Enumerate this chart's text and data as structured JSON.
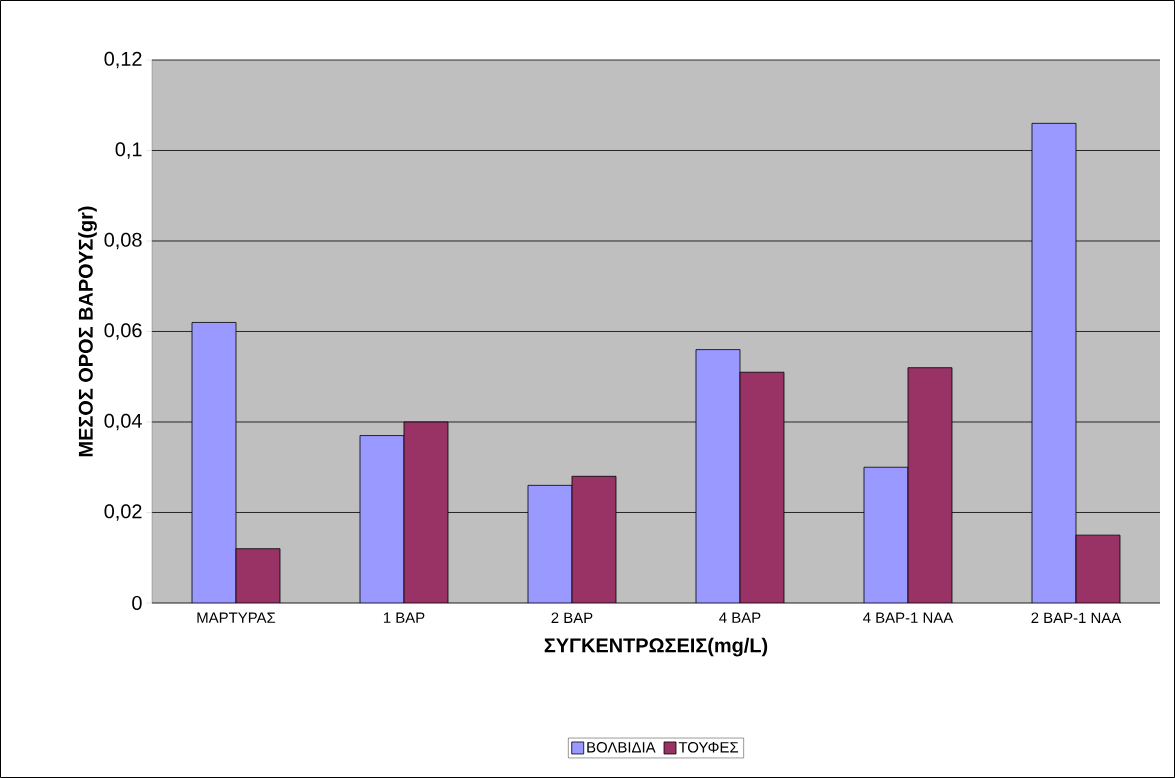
{
  "chart_data": {
    "type": "bar",
    "xlabel": "ΣΥΓΚΕΝΤΡΩΣΕΙΣ(mg/L)",
    "ylabel": "ΜΕΣΟΣ ΟΡΟΣ ΒΑΡΟΥΣ(gr)",
    "categories": [
      "ΜΑΡΤΥΡΑΣ",
      "1 BAP",
      "2 BAP",
      "4 BAP",
      "4 BAP-1 NAA",
      "2 BAP-1 NAA"
    ],
    "series": [
      {
        "name": "ΒΟΛΒΙΔΙΑ",
        "color": "#9999ff",
        "values": [
          0.062,
          0.037,
          0.026,
          0.056,
          0.03,
          0.106
        ]
      },
      {
        "name": "ΤΟΥΦΕΣ",
        "color": "#993366",
        "values": [
          0.012,
          0.04,
          0.028,
          0.051,
          0.052,
          0.015
        ]
      }
    ],
    "ylim": [
      0,
      0.12
    ],
    "yticks": [
      0,
      {
        "value": 0.02,
        "label": "0,02"
      },
      {
        "value": 0.04,
        "label": "0,04"
      },
      {
        "value": 0.06,
        "label": "0,06"
      },
      {
        "value": 0.08,
        "label": "0,08"
      },
      {
        "value": 0.1,
        "label": "0,1"
      },
      {
        "value": 0.12,
        "label": "0,12"
      }
    ],
    "grid": "y",
    "legend": "bottom"
  }
}
